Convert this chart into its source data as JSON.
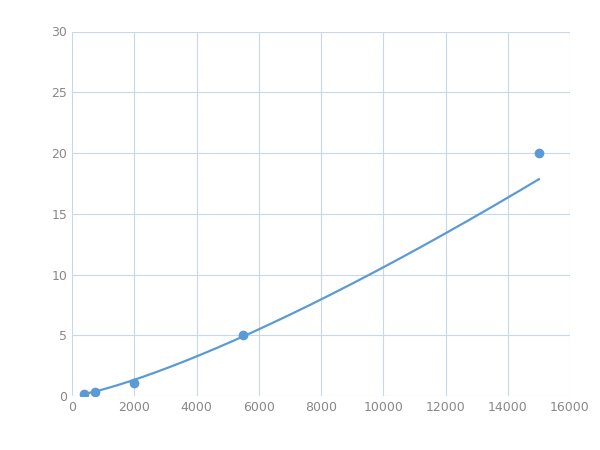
{
  "x_points": [
    370,
    740,
    2000,
    5500,
    15000
  ],
  "y_points": [
    0.2,
    0.3,
    1.1,
    5.0,
    20.0
  ],
  "line_color": "#5b9bd5",
  "marker_color": "#5b9bd5",
  "marker_size": 7,
  "line_width": 1.6,
  "xlim": [
    0,
    16000
  ],
  "ylim": [
    0,
    30
  ],
  "xticks": [
    0,
    2000,
    4000,
    6000,
    8000,
    10000,
    12000,
    14000,
    16000
  ],
  "yticks": [
    0,
    5,
    10,
    15,
    20,
    25,
    30
  ],
  "grid_color": "#c8d8e8",
  "background_color": "#ffffff",
  "figure_bg": "#ffffff",
  "tick_labelsize": 9,
  "tick_color": "#888888"
}
